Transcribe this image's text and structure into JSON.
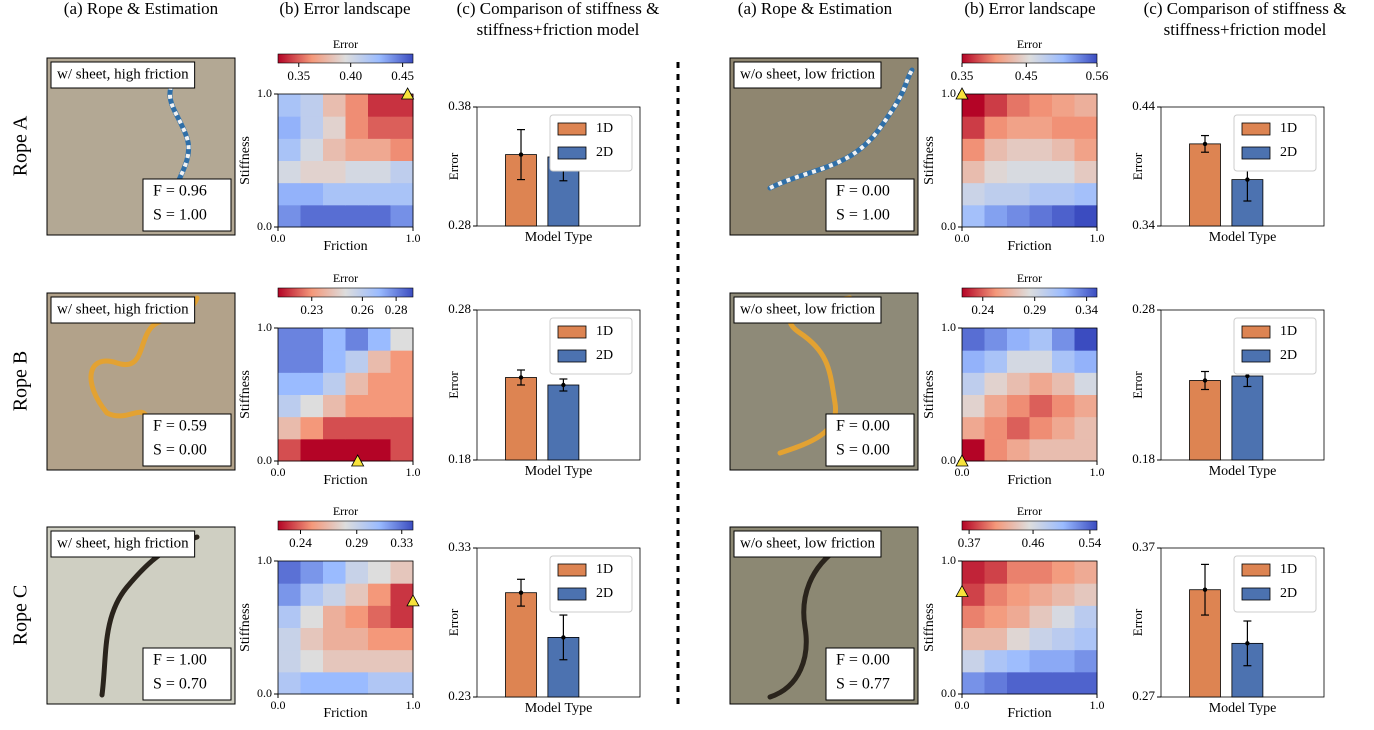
{
  "headers": [
    "(a) Rope & Estimation",
    "(b) Error landscape",
    [
      "(c) Comparison of stiffness &",
      "stiffness+friction model"
    ],
    "(a) Rope & Estimation",
    "(b) Error landscape",
    [
      "(c) Comparison of stiffness &",
      "stiffness+friction model"
    ]
  ],
  "row_labels": [
    "Rope A",
    "Rope B",
    "Rope C"
  ],
  "photos": [
    [
      {
        "label": "w/ sheet, high friction",
        "estimate": [
          "F = 0.96",
          "S = 1.00"
        ]
      },
      {
        "label": "w/o sheet, low friction",
        "estimate": [
          "F = 0.00",
          "S = 1.00"
        ]
      }
    ],
    [
      {
        "label": "w/ sheet, high friction",
        "estimate": [
          "F = 0.59",
          "S = 0.00"
        ]
      },
      {
        "label": "w/o sheet, low friction",
        "estimate": [
          "F = 0.00",
          "S = 0.00"
        ]
      }
    ],
    [
      {
        "label": "w/ sheet, high friction",
        "estimate": [
          "F = 1.00",
          "S = 0.70"
        ]
      },
      {
        "label": "w/o sheet, low friction",
        "estimate": [
          "F = 0.00",
          "S = 0.77"
        ]
      }
    ]
  ],
  "chart_data": [
    {
      "type": "heatmap",
      "colorbar_label": "Error",
      "xlabel": "Friction",
      "ylabel": "Stiffness",
      "xlim": [
        0,
        1
      ],
      "ylim": [
        0,
        1
      ],
      "xticks": [
        {
          "value": 0,
          "label": "0.0"
        },
        {
          "value": 1,
          "label": "1.0"
        }
      ],
      "yticks": [
        {
          "value": 0,
          "label": "0.0"
        },
        {
          "value": 1,
          "label": "1.0"
        }
      ],
      "clim": [
        0.33,
        0.46
      ],
      "cticks": [
        0.35,
        {
          "value": 0.4,
          "label": "0.40"
        },
        0.45
      ],
      "colormap": [
        "#b40426",
        "#f4987a",
        "#dddddd",
        "#9abbff",
        "#3b4cc0"
      ],
      "z": [
        [
          0.44,
          0.45,
          0.45,
          0.45,
          0.45,
          0.44
        ],
        [
          0.43,
          0.43,
          0.42,
          0.42,
          0.42,
          0.42
        ],
        [
          0.4,
          0.39,
          0.39,
          0.4,
          0.4,
          0.41
        ],
        [
          0.42,
          0.4,
          0.38,
          0.37,
          0.37,
          0.36
        ],
        [
          0.43,
          0.41,
          0.39,
          0.36,
          0.35,
          0.35
        ],
        [
          0.42,
          0.41,
          0.38,
          0.36,
          0.34,
          0.34
        ]
      ],
      "marker": {
        "x": 0.96,
        "y": 1.0,
        "color": "#f7e33b"
      }
    },
    {
      "type": "bar",
      "ylabel": "Error",
      "xlabel": "Model Type",
      "ylim": [
        0.28,
        0.38
      ],
      "yticks": [
        0.28,
        0.38
      ],
      "legend": "upper right",
      "series": [
        {
          "name": "1D",
          "color": "#dd8452",
          "values": [
            0.34
          ],
          "errors": [
            0.021
          ]
        },
        {
          "name": "2D",
          "color": "#4c72b0",
          "values": [
            0.338
          ],
          "errors": [
            0.02
          ]
        }
      ]
    },
    {
      "type": "heatmap",
      "colorbar_label": "Error",
      "xlabel": "Friction",
      "ylabel": "Stiffness",
      "xlim": [
        0,
        1
      ],
      "ylim": [
        0,
        1
      ],
      "xticks": [
        {
          "value": 0,
          "label": "0.0"
        },
        {
          "value": 1,
          "label": "1.0"
        }
      ],
      "yticks": [
        {
          "value": 0,
          "label": "0.0"
        },
        {
          "value": 1,
          "label": "1.0"
        }
      ],
      "clim": [
        0.35,
        0.56
      ],
      "cticks": [
        0.35,
        0.45,
        0.56
      ],
      "colormap": [
        "#b40426",
        "#f4987a",
        "#dddddd",
        "#9abbff",
        "#3b4cc0"
      ],
      "z": [
        [
          0.5,
          0.52,
          0.53,
          0.54,
          0.55,
          0.56
        ],
        [
          0.47,
          0.48,
          0.48,
          0.49,
          0.49,
          0.5
        ],
        [
          0.43,
          0.45,
          0.46,
          0.46,
          0.46,
          0.44
        ],
        [
          0.4,
          0.43,
          0.44,
          0.44,
          0.43,
          0.41
        ],
        [
          0.37,
          0.4,
          0.41,
          0.41,
          0.4,
          0.4
        ],
        [
          0.35,
          0.37,
          0.39,
          0.4,
          0.41,
          0.42
        ]
      ],
      "marker": {
        "x": 0,
        "y": 1.0,
        "color": "#f7e33b"
      }
    },
    {
      "type": "bar",
      "ylabel": "Error",
      "xlabel": "Model Type",
      "ylim": [
        0.34,
        0.44
      ],
      "yticks": [
        0.34,
        0.44
      ],
      "legend": "upper right",
      "series": [
        {
          "name": "1D",
          "color": "#dd8452",
          "values": [
            0.409
          ],
          "errors": [
            0.007
          ]
        },
        {
          "name": "2D",
          "color": "#4c72b0",
          "values": [
            0.379
          ],
          "errors": [
            0.018
          ]
        }
      ]
    },
    {
      "type": "heatmap",
      "colorbar_label": "Error",
      "xlabel": "Friction",
      "ylabel": "Stiffness",
      "xlim": [
        0,
        1
      ],
      "ylim": [
        0,
        1
      ],
      "xticks": [
        {
          "value": 0,
          "label": "0.0"
        },
        {
          "value": 1,
          "label": "1.0"
        }
      ],
      "yticks": [
        {
          "value": 0,
          "label": "0.0"
        },
        {
          "value": 1,
          "label": "1.0"
        }
      ],
      "clim": [
        0.21,
        0.29
      ],
      "cticks": [
        0.23,
        0.26,
        0.28
      ],
      "colormap": [
        "#b40426",
        "#f4987a",
        "#dddddd",
        "#9abbff",
        "#3b4cc0"
      ],
      "z": [
        [
          0.22,
          0.21,
          0.21,
          0.21,
          0.21,
          0.22
        ],
        [
          0.24,
          0.23,
          0.22,
          0.22,
          0.22,
          0.22
        ],
        [
          0.26,
          0.25,
          0.24,
          0.23,
          0.23,
          0.23
        ],
        [
          0.27,
          0.27,
          0.26,
          0.24,
          0.23,
          0.23
        ],
        [
          0.28,
          0.28,
          0.27,
          0.26,
          0.24,
          0.23
        ],
        [
          0.28,
          0.28,
          0.27,
          0.28,
          0.27,
          0.25
        ]
      ],
      "marker": {
        "x": 0.59,
        "y": 0,
        "color": "#f7e33b"
      }
    },
    {
      "type": "bar",
      "ylabel": "Error",
      "xlabel": "Model Type",
      "ylim": [
        0.18,
        0.28
      ],
      "yticks": [
        0.18,
        0.28
      ],
      "legend": "upper right",
      "series": [
        {
          "name": "1D",
          "color": "#dd8452",
          "values": [
            0.235
          ],
          "errors": [
            0.005
          ]
        },
        {
          "name": "2D",
          "color": "#4c72b0",
          "values": [
            0.23
          ],
          "errors": [
            0.004
          ]
        }
      ]
    },
    {
      "type": "heatmap",
      "colorbar_label": "Error",
      "xlabel": "Friction",
      "ylabel": "Stiffness",
      "xlim": [
        0,
        1
      ],
      "ylim": [
        0,
        1
      ],
      "xticks": [
        {
          "value": 0,
          "label": "0.0"
        },
        {
          "value": 1,
          "label": "1.0"
        }
      ],
      "yticks": [
        {
          "value": 0,
          "label": "0.0"
        },
        {
          "value": 1,
          "label": "1.0"
        }
      ],
      "clim": [
        0.22,
        0.35
      ],
      "cticks": [
        0.24,
        0.29,
        0.34
      ],
      "colormap": [
        "#b40426",
        "#f4987a",
        "#dddddd",
        "#9abbff",
        "#3b4cc0"
      ],
      "z": [
        [
          0.22,
          0.25,
          0.26,
          0.27,
          0.27,
          0.27
        ],
        [
          0.26,
          0.25,
          0.24,
          0.25,
          0.26,
          0.27
        ],
        [
          0.28,
          0.26,
          0.25,
          0.24,
          0.25,
          0.26
        ],
        [
          0.3,
          0.28,
          0.27,
          0.26,
          0.27,
          0.29
        ],
        [
          0.32,
          0.31,
          0.29,
          0.29,
          0.31,
          0.32
        ],
        [
          0.34,
          0.33,
          0.32,
          0.31,
          0.33,
          0.35
        ]
      ],
      "marker": {
        "x": 0,
        "y": 0,
        "color": "#f7e33b"
      }
    },
    {
      "type": "bar",
      "ylabel": "Error",
      "xlabel": "Model Type",
      "ylim": [
        0.18,
        0.28
      ],
      "yticks": [
        0.18,
        0.28
      ],
      "legend": "upper right",
      "series": [
        {
          "name": "1D",
          "color": "#dd8452",
          "values": [
            0.233
          ],
          "errors": [
            0.006
          ]
        },
        {
          "name": "2D",
          "color": "#4c72b0",
          "values": [
            0.236
          ],
          "errors": [
            0.007
          ]
        }
      ]
    },
    {
      "type": "heatmap",
      "colorbar_label": "Error",
      "xlabel": "Friction",
      "ylabel": "Stiffness",
      "xlim": [
        0,
        1
      ],
      "ylim": [
        0,
        1
      ],
      "xticks": [
        {
          "value": 0,
          "label": "0.0"
        },
        {
          "value": 1,
          "label": "1.0"
        }
      ],
      "yticks": [
        {
          "value": 0,
          "label": "0.0"
        },
        {
          "value": 1,
          "label": "1.0"
        }
      ],
      "clim": [
        0.22,
        0.34
      ],
      "cticks": [
        0.24,
        0.29,
        0.33
      ],
      "colormap": [
        "#b40426",
        "#f4987a",
        "#dddddd",
        "#9abbff",
        "#3b4cc0"
      ],
      "z": [
        [
          0.3,
          0.31,
          0.31,
          0.31,
          0.3,
          0.3
        ],
        [
          0.29,
          0.28,
          0.27,
          0.27,
          0.27,
          0.27
        ],
        [
          0.29,
          0.27,
          0.26,
          0.26,
          0.25,
          0.25
        ],
        [
          0.3,
          0.28,
          0.26,
          0.25,
          0.24,
          0.23
        ],
        [
          0.32,
          0.3,
          0.29,
          0.27,
          0.25,
          0.23
        ],
        [
          0.33,
          0.32,
          0.31,
          0.29,
          0.28,
          0.27
        ]
      ],
      "marker": {
        "x": 1.0,
        "y": 0.7,
        "color": "#f7e33b"
      }
    },
    {
      "type": "bar",
      "ylabel": "Error",
      "xlabel": "Model Type",
      "ylim": [
        0.23,
        0.33
      ],
      "yticks": [
        0.23,
        0.33
      ],
      "legend": "upper right",
      "series": [
        {
          "name": "1D",
          "color": "#dd8452",
          "values": [
            0.3
          ],
          "errors": [
            0.009
          ]
        },
        {
          "name": "2D",
          "color": "#4c72b0",
          "values": [
            0.27
          ],
          "errors": [
            0.015
          ]
        }
      ]
    },
    {
      "type": "heatmap",
      "colorbar_label": "Error",
      "xlabel": "Friction",
      "ylabel": "Stiffness",
      "xlim": [
        0,
        1
      ],
      "ylim": [
        0,
        1
      ],
      "xticks": [
        {
          "value": 0,
          "label": "0.0"
        },
        {
          "value": 1,
          "label": "1.0"
        }
      ],
      "yticks": [
        {
          "value": 0,
          "label": "0.0"
        },
        {
          "value": 1,
          "label": "1.0"
        }
      ],
      "clim": [
        0.36,
        0.55
      ],
      "cticks": [
        0.37,
        0.46,
        0.54
      ],
      "colormap": [
        "#b40426",
        "#f4987a",
        "#dddddd",
        "#9abbff",
        "#3b4cc0"
      ],
      "z": [
        [
          0.52,
          0.53,
          0.54,
          0.54,
          0.54,
          0.54
        ],
        [
          0.47,
          0.49,
          0.5,
          0.51,
          0.51,
          0.52
        ],
        [
          0.43,
          0.43,
          0.45,
          0.47,
          0.48,
          0.49
        ],
        [
          0.4,
          0.41,
          0.42,
          0.44,
          0.46,
          0.48
        ],
        [
          0.38,
          0.4,
          0.41,
          0.42,
          0.43,
          0.44
        ],
        [
          0.37,
          0.38,
          0.4,
          0.4,
          0.41,
          0.42
        ]
      ],
      "marker": {
        "x": 0,
        "y": 0.77,
        "color": "#f7e33b"
      }
    },
    {
      "type": "bar",
      "ylabel": "Error",
      "xlabel": "Model Type",
      "ylim": [
        0.27,
        0.37
      ],
      "yticks": [
        0.27,
        0.37
      ],
      "legend": "upper right",
      "series": [
        {
          "name": "1D",
          "color": "#dd8452",
          "values": [
            0.342
          ],
          "errors": [
            0.017
          ]
        },
        {
          "name": "2D",
          "color": "#4c72b0",
          "values": [
            0.306
          ],
          "errors": [
            0.015
          ]
        }
      ]
    }
  ]
}
